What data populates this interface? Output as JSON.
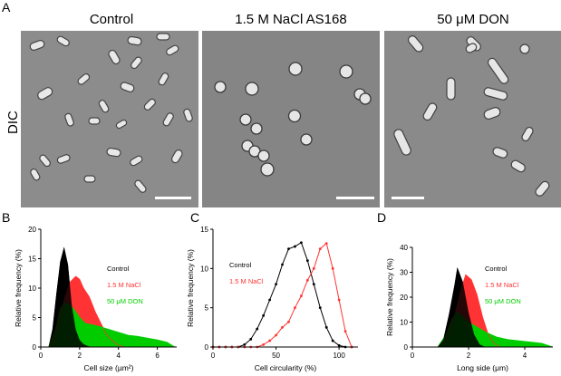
{
  "panel_a": {
    "letter": "A",
    "row_label": "DIC",
    "columns": [
      "Control",
      "1.5 M NaCl AS168",
      "50 μM DON"
    ],
    "colors": {
      "background": "#8a8a8a",
      "cell_light": "#e6e6e6",
      "cell_dark": "#4a4a4a",
      "scalebar": "#ffffff"
    }
  },
  "chart_data": [
    {
      "panel": "B",
      "type": "area",
      "xlabel": "Cell size (µm²)",
      "ylabel": "Relative frequency (%)",
      "xlim": [
        0,
        7
      ],
      "ylim": [
        0,
        20
      ],
      "xticks": [
        "0",
        "2",
        "4",
        "6"
      ],
      "yticks": [
        "0",
        "5",
        "10",
        "15",
        "20"
      ],
      "legend_position": "right",
      "grid": false,
      "series": [
        {
          "name": "Control",
          "color": "#000000",
          "x": [
            0.4,
            0.6,
            0.8,
            1.0,
            1.2,
            1.4,
            1.6,
            1.8,
            2.0,
            2.2,
            2.4,
            2.6
          ],
          "y": [
            0,
            3,
            9,
            14.5,
            17,
            14,
            7,
            3,
            1.2,
            0.5,
            0.2,
            0
          ]
        },
        {
          "name": "1.5 M  NaCl",
          "color": "#ff3333",
          "x": [
            0.5,
            0.8,
            1.0,
            1.2,
            1.5,
            1.8,
            2.0,
            2.2,
            2.5,
            2.8,
            3.1,
            3.4,
            3.7,
            4.0,
            4.3
          ],
          "y": [
            0,
            2,
            5,
            8,
            11,
            12,
            11.5,
            10,
            8.5,
            6,
            4,
            2,
            1,
            0.3,
            0
          ]
        },
        {
          "name": "50 μM DON",
          "color": "#00cc00",
          "x": [
            0.4,
            0.8,
            1.0,
            1.2,
            1.5,
            1.8,
            2.0,
            2.3,
            2.6,
            3.0,
            3.5,
            4.0,
            4.5,
            5.0,
            5.5,
            6.0,
            6.5,
            6.9
          ],
          "y": [
            0,
            3.5,
            6.5,
            7.5,
            7.2,
            6,
            5,
            4,
            3.8,
            3.5,
            3,
            2.5,
            2,
            1.8,
            1.5,
            1.2,
            0.8,
            0
          ]
        }
      ]
    },
    {
      "panel": "C",
      "type": "line",
      "xlabel": "Cell circularity (%)",
      "ylabel": "Relative frequency (%)",
      "xlim": [
        0,
        115
      ],
      "ylim": [
        0,
        15
      ],
      "xticks": [
        "0",
        "50",
        "100"
      ],
      "yticks": [
        "0",
        "5",
        "10",
        "15"
      ],
      "legend_position": "top-left",
      "grid": false,
      "series": [
        {
          "name": "Control",
          "color": "#000000",
          "x": [
            0,
            5,
            10,
            15,
            20,
            25,
            30,
            35,
            40,
            45,
            50,
            55,
            60,
            65,
            70,
            75,
            80,
            85,
            90,
            95,
            100,
            105,
            110
          ],
          "y": [
            0,
            0,
            0,
            0,
            0,
            0.3,
            1,
            2.3,
            4,
            6,
            8,
            10.5,
            12.5,
            12.8,
            13.3,
            11,
            8,
            5,
            2.5,
            0.8,
            0.2,
            0,
            0
          ]
        },
        {
          "name": "1.5 M NaCl",
          "color": "#ff3333",
          "x": [
            0,
            5,
            10,
            15,
            20,
            25,
            30,
            35,
            40,
            45,
            50,
            55,
            60,
            65,
            70,
            75,
            80,
            85,
            90,
            95,
            100,
            105,
            110
          ],
          "y": [
            0,
            0,
            0,
            0,
            0,
            0,
            0,
            0,
            0.3,
            0.8,
            1.5,
            2.5,
            3.2,
            5,
            6.5,
            8.5,
            10,
            12.5,
            13.2,
            10,
            6,
            2,
            0
          ]
        }
      ]
    },
    {
      "panel": "D",
      "type": "area",
      "xlabel": "Long side (μm)",
      "ylabel": "Relative frequency (%)",
      "xlim": [
        0,
        5
      ],
      "ylim": [
        0,
        40
      ],
      "xticks": [
        "0",
        "2",
        "4"
      ],
      "yticks": [
        "0",
        "10",
        "20",
        "30",
        "40"
      ],
      "legend_position": "right",
      "grid": false,
      "series": [
        {
          "name": "Control",
          "color": "#000000",
          "x": [
            0.9,
            1.1,
            1.3,
            1.5,
            1.6,
            1.8,
            2.0,
            2.2,
            2.4,
            2.6
          ],
          "y": [
            0,
            3,
            13,
            25,
            32,
            26,
            14,
            5,
            1,
            0
          ]
        },
        {
          "name": "1.5 M NaCl",
          "color": "#ff3333",
          "x": [
            1.0,
            1.3,
            1.5,
            1.7,
            1.9,
            2.1,
            2.3,
            2.5,
            2.7,
            2.9,
            3.1
          ],
          "y": [
            0,
            5,
            12,
            22,
            29,
            27,
            21,
            12,
            5,
            1.5,
            0
          ]
        },
        {
          "name": "50 μM DON",
          "color": "#00cc00",
          "x": [
            0.9,
            1.2,
            1.4,
            1.6,
            1.8,
            2.0,
            2.3,
            2.6,
            3.0,
            3.4,
            3.8,
            4.2,
            4.6,
            5.0
          ],
          "y": [
            0,
            5,
            11,
            14,
            12,
            10,
            8,
            6,
            4,
            3,
            2.5,
            2,
            1.5,
            0
          ]
        }
      ]
    }
  ]
}
